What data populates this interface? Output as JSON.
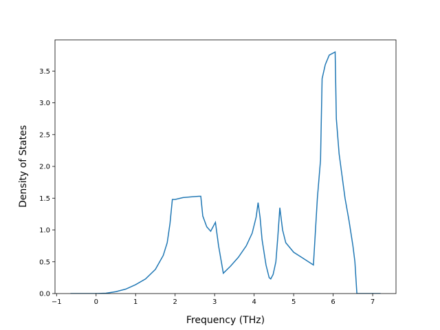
{
  "chart_data": {
    "type": "line",
    "x_label": "Frequency (THz)",
    "y_label": "Density of States",
    "series": [
      {
        "color": "#1f77b4",
        "x": [
          -0.65,
          0,
          0.25,
          0.5,
          0.75,
          1.0,
          1.25,
          1.5,
          1.7,
          1.8,
          1.87,
          1.93,
          2.0,
          2.2,
          2.4,
          2.6,
          2.65,
          2.7,
          2.8,
          2.9,
          3.02,
          3.1,
          3.22,
          3.4,
          3.6,
          3.8,
          3.95,
          4.05,
          4.1,
          4.15,
          4.2,
          4.3,
          4.38,
          4.42,
          4.48,
          4.55,
          4.6,
          4.65,
          4.72,
          4.8,
          5.0,
          5.2,
          5.5,
          5.6,
          5.68,
          5.72,
          5.8,
          5.9,
          6.05,
          6.08,
          6.15,
          6.3,
          6.4,
          6.5,
          6.55,
          6.6,
          7.2
        ],
        "values": [
          0,
          0,
          0.005,
          0.03,
          0.07,
          0.14,
          0.23,
          0.38,
          0.6,
          0.8,
          1.1,
          1.48,
          1.48,
          1.51,
          1.52,
          1.53,
          1.53,
          1.22,
          1.05,
          0.98,
          1.12,
          0.75,
          0.32,
          0.43,
          0.57,
          0.75,
          0.95,
          1.2,
          1.43,
          1.2,
          0.85,
          0.45,
          0.25,
          0.23,
          0.3,
          0.5,
          0.9,
          1.35,
          1.0,
          0.8,
          0.65,
          0.57,
          0.45,
          1.5,
          2.1,
          3.38,
          3.6,
          3.75,
          3.8,
          2.75,
          2.2,
          1.5,
          1.15,
          0.75,
          0.5,
          0,
          0
        ]
      }
    ],
    "xlim": [
      -1.04,
      7.59
    ],
    "ylim": [
      0,
      3.99
    ],
    "xticks": [
      {
        "value": -1,
        "label": "−1"
      },
      0,
      1,
      2,
      3,
      4,
      5,
      6,
      7
    ],
    "yticks": [
      {
        "value": 0,
        "label": "0.0"
      },
      {
        "value": 0.5,
        "label": "0.5"
      },
      {
        "value": 1,
        "label": "1.0"
      },
      {
        "value": 1.5,
        "label": "1.5"
      },
      {
        "value": 2,
        "label": "2.0"
      },
      {
        "value": 2.5,
        "label": "2.5"
      },
      {
        "value": 3,
        "label": "3.0"
      },
      {
        "value": 3.5,
        "label": "3.5"
      }
    ]
  }
}
